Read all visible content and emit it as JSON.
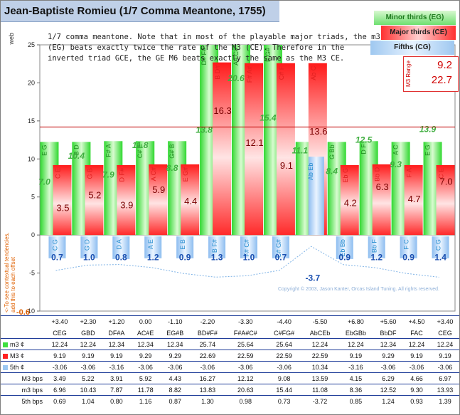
{
  "title": "Jean-Baptiste Romieu (1/7 Comma Meantone, 1755)",
  "description": "1/7 comma meantone. Note that in most of the playable major triads, the m3 (EG) beats exactly twice the rate of the M3 (CE). Therefore in the inverted triad GCE, the GE M6 beats exactly the same as the M3 CE.",
  "legend": {
    "minor": "Minor thirds (EG)",
    "major": "Major thirds (CE)",
    "fifths": "Fifths (CG)"
  },
  "m3_range": {
    "label": "M3 Range",
    "min": "9.2",
    "max": "22.7"
  },
  "copyright": "Copyright © 2003, Jason Kanter, Orcas Island Tuning. All rights reserved.",
  "side_note": "<-To see contextual tendencies, add this to each offset",
  "web_label": "web",
  "neg_label": "-0.6",
  "colors": {
    "minor": "#3ee03e",
    "major": "#ff2020",
    "fifth": "#9cc8f2",
    "line": "#c00000"
  },
  "chart_data": {
    "type": "bar",
    "ylim": [
      -10,
      25
    ],
    "yticks": [
      -10,
      -5,
      0,
      5,
      10,
      15,
      20,
      25
    ],
    "reference_line": 14.2,
    "categories": [
      "CEG",
      "GBD",
      "DF#A",
      "AC#E",
      "EG#B",
      "BD#F#",
      "F#A#C#",
      "C#FG#",
      "AbCEb",
      "EbGBb",
      "BbDF",
      "FAC",
      "CEG"
    ],
    "offsets": [
      "+3.40",
      "+2.30",
      "+1.20",
      "0.00",
      "-1.10",
      "-2.20",
      "-3.30",
      "-4.40",
      "-5.50",
      "+6.80",
      "+5.60",
      "+4.50",
      "+3.40"
    ],
    "series": [
      {
        "name": "m3 ¢",
        "values": [
          12.24,
          12.24,
          12.34,
          12.34,
          12.34,
          25.74,
          25.64,
          25.64,
          12.24,
          12.24,
          12.34,
          12.24,
          12.24
        ]
      },
      {
        "name": "M3 ¢",
        "values": [
          9.19,
          9.19,
          9.19,
          9.29,
          9.29,
          22.69,
          22.59,
          22.59,
          22.59,
          9.19,
          9.29,
          9.19,
          9.19
        ]
      },
      {
        "name": "5th ¢",
        "values": [
          -3.06,
          -3.06,
          -3.16,
          -3.06,
          -3.06,
          -3.06,
          -3.06,
          -3.06,
          10.34,
          -3.16,
          -3.06,
          -3.06,
          -3.06
        ]
      },
      {
        "name": "M3 bps",
        "values": [
          3.49,
          5.22,
          3.91,
          5.92,
          4.43,
          16.27,
          12.12,
          9.08,
          13.59,
          4.15,
          6.29,
          4.66,
          6.97
        ]
      },
      {
        "name": "m3 bps",
        "values": [
          6.96,
          10.43,
          7.87,
          11.78,
          8.82,
          13.83,
          20.63,
          15.44,
          11.08,
          8.36,
          12.52,
          9.3,
          13.93
        ]
      },
      {
        "name": "5th bps",
        "values": [
          0.69,
          1.04,
          0.8,
          1.16,
          0.87,
          1.3,
          0.98,
          0.73,
          -3.72,
          0.85,
          1.24,
          0.93,
          1.39
        ]
      }
    ],
    "interval_labels": {
      "minor": [
        "E G",
        "B D",
        "F# A",
        "C# E",
        "G# B",
        "D# F#",
        "A# C#",
        "F G#",
        "",
        "G Bb",
        "D F",
        "A C",
        "E G"
      ],
      "major": [
        "C E",
        "G B",
        "D F#",
        "A C#",
        "E G#",
        "B D#",
        "F# A#",
        "C# F",
        "Ab C",
        "Eb G",
        "Bb D",
        "F A",
        "C E"
      ],
      "fifth": [
        "C G",
        "G D",
        "D A",
        "A E",
        "E B",
        "B F#",
        "F# C#",
        "C# G#",
        "Ab Eb",
        "Eb Bb",
        "Bb F",
        "F C",
        "C G"
      ]
    },
    "bar_labels": {
      "m3": [
        "7.0",
        "10.4",
        "7.9",
        "11.8",
        "8.8",
        "13.8",
        "20.6",
        "15.4",
        "11.1",
        "8.4",
        "12.5",
        "9.3",
        "13.9"
      ],
      "M3": [
        "3.5",
        "5.2",
        "3.9",
        "5.9",
        "4.4",
        "16.3",
        "12.1",
        "9.1",
        "13.6",
        "4.2",
        "6.3",
        "4.7",
        "7.0"
      ],
      "fifth": [
        "0.7",
        "1.0",
        "0.8",
        "1.2",
        "0.9",
        "1.3",
        "1.0",
        "0.7",
        "-3.7",
        "0.9",
        "1.2",
        "0.9",
        "1.4"
      ]
    }
  },
  "table": {
    "rows": [
      {
        "label": "m3 ¢",
        "swatch": "minor",
        "series": 0
      },
      {
        "label": "M3 ¢",
        "swatch": "major",
        "series": 1
      },
      {
        "label": "5th ¢",
        "swatch": "fifth",
        "series": 2
      },
      {
        "label": "M3 bps",
        "swatch": "",
        "series": 3
      },
      {
        "label": "m3 bps",
        "swatch": "",
        "series": 4
      },
      {
        "label": "5th bps",
        "swatch": "",
        "series": 5
      }
    ]
  }
}
